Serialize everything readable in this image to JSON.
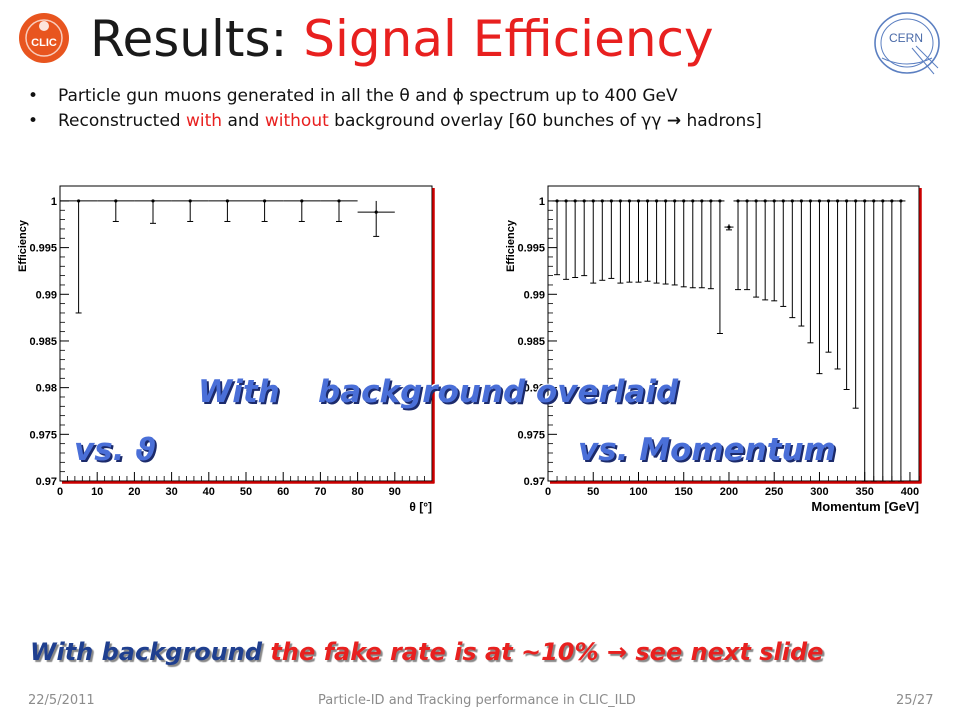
{
  "header": {
    "title_prefix": "Results: ",
    "title_accent": "Signal Efficiency",
    "left_logo_text": "CLIC",
    "right_logo_text": "CERN"
  },
  "bullets": [
    {
      "text": "Particle gun muons generated in all the θ and ϕ spectrum up to 400 GeV"
    },
    {
      "part1": "Reconstructed ",
      "with": "with",
      "part2": " and ",
      "without": "without",
      "part3": " background overlay [60 bunches of γγ  ",
      "arrow": "→",
      "part4": " hadrons]"
    }
  ],
  "overlay": {
    "with": "With",
    "rest": "background overlaid",
    "left_label": "vs. ϑ",
    "right_label": "vs. Momentum"
  },
  "bottom_note": {
    "blue": "With background",
    "red": "the fake rate is at ~10%",
    "arrow": "→",
    "red2": "see next slide"
  },
  "footer": {
    "date": "22/5/2011",
    "center": "Particle-ID and Tracking performance in CLIC_ILD",
    "page": "25/27"
  },
  "colors": {
    "accent": "#e8201f",
    "overlay_blue": "#4a6fd8",
    "frame_red": "#cc0000"
  },
  "chart_data": [
    {
      "type": "scatter",
      "title": "",
      "xlabel": "θ [°]",
      "ylabel": "Efficiency",
      "xlim": [
        0,
        100
      ],
      "ylim": [
        0.97,
        1.0016
      ],
      "xticks": [
        0,
        10,
        20,
        30,
        40,
        50,
        60,
        70,
        80,
        90
      ],
      "yticks": [
        0.97,
        0.975,
        0.98,
        0.985,
        0.99,
        0.995,
        1
      ],
      "tick_labels_x": [
        "0",
        "10",
        "20",
        "30",
        "40",
        "50",
        "60",
        "70",
        "80",
        "90"
      ],
      "tick_labels_y": [
        "0.97",
        "0.975",
        "0.98",
        "0.985",
        "0.99",
        "0.995",
        "1"
      ],
      "points": [
        {
          "x": 5,
          "y": 1.0,
          "xerr": 5,
          "ylow": 0.988,
          "yhigh": 1.0
        },
        {
          "x": 15,
          "y": 1.0,
          "xerr": 5,
          "ylow": 0.9978,
          "yhigh": 1.0
        },
        {
          "x": 25,
          "y": 1.0,
          "xerr": 5,
          "ylow": 0.9976,
          "yhigh": 1.0
        },
        {
          "x": 35,
          "y": 1.0,
          "xerr": 5,
          "ylow": 0.9978,
          "yhigh": 1.0
        },
        {
          "x": 45,
          "y": 1.0,
          "xerr": 5,
          "ylow": 0.9978,
          "yhigh": 1.0
        },
        {
          "x": 55,
          "y": 1.0,
          "xerr": 5,
          "ylow": 0.9978,
          "yhigh": 1.0
        },
        {
          "x": 65,
          "y": 1.0,
          "xerr": 5,
          "ylow": 0.9978,
          "yhigh": 1.0
        },
        {
          "x": 75,
          "y": 1.0,
          "xerr": 5,
          "ylow": 0.9978,
          "yhigh": 1.0
        },
        {
          "x": 85,
          "y": 0.9988,
          "xerr": 5,
          "ylow": 0.9962,
          "yhigh": 1.0
        }
      ]
    },
    {
      "type": "scatter",
      "title": "",
      "xlabel": "Momentum [GeV]",
      "ylabel": "Efficiency",
      "xlim": [
        0,
        410
      ],
      "ylim": [
        0.97,
        1.0016
      ],
      "xticks": [
        0,
        50,
        100,
        150,
        200,
        250,
        300,
        350,
        400
      ],
      "yticks": [
        0.97,
        0.975,
        0.98,
        0.985,
        0.99,
        0.995,
        1
      ],
      "tick_labels_x": [
        "0",
        "50",
        "100",
        "150",
        "200",
        "250",
        "300",
        "350",
        "400"
      ],
      "tick_labels_y": [
        "0.97",
        "0.975",
        "0.98",
        "0.985",
        "0.99",
        "0.995",
        "1"
      ],
      "points": [
        {
          "x": 10,
          "y": 1.0,
          "ylow": 0.9921
        },
        {
          "x": 20,
          "y": 1.0,
          "ylow": 0.9916
        },
        {
          "x": 30,
          "y": 1.0,
          "ylow": 0.9918
        },
        {
          "x": 40,
          "y": 1.0,
          "ylow": 0.992
        },
        {
          "x": 50,
          "y": 1.0,
          "ylow": 0.9912
        },
        {
          "x": 60,
          "y": 1.0,
          "ylow": 0.9915
        },
        {
          "x": 70,
          "y": 1.0,
          "ylow": 0.9917
        },
        {
          "x": 80,
          "y": 1.0,
          "ylow": 0.9912
        },
        {
          "x": 90,
          "y": 1.0,
          "ylow": 0.9913
        },
        {
          "x": 100,
          "y": 1.0,
          "ylow": 0.9913
        },
        {
          "x": 110,
          "y": 1.0,
          "ylow": 0.9914
        },
        {
          "x": 120,
          "y": 1.0,
          "ylow": 0.9912
        },
        {
          "x": 130,
          "y": 1.0,
          "ylow": 0.9911
        },
        {
          "x": 140,
          "y": 1.0,
          "ylow": 0.991
        },
        {
          "x": 150,
          "y": 1.0,
          "ylow": 0.9908
        },
        {
          "x": 160,
          "y": 1.0,
          "ylow": 0.9907
        },
        {
          "x": 170,
          "y": 1.0,
          "ylow": 0.9907
        },
        {
          "x": 180,
          "y": 1.0,
          "ylow": 0.9906
        },
        {
          "x": 190,
          "y": 1.0,
          "ylow": 0.9858
        },
        {
          "x": 200,
          "y": 0.9972,
          "ylow": 0.9969,
          "yhigh": 0.9975
        },
        {
          "x": 210,
          "y": 1.0,
          "ylow": 0.9905
        },
        {
          "x": 220,
          "y": 1.0,
          "ylow": 0.9905
        },
        {
          "x": 230,
          "y": 1.0,
          "ylow": 0.9897
        },
        {
          "x": 240,
          "y": 1.0,
          "ylow": 0.9894
        },
        {
          "x": 250,
          "y": 1.0,
          "ylow": 0.9893
        },
        {
          "x": 260,
          "y": 1.0,
          "ylow": 0.9887
        },
        {
          "x": 270,
          "y": 1.0,
          "ylow": 0.9875
        },
        {
          "x": 280,
          "y": 1.0,
          "ylow": 0.9866
        },
        {
          "x": 290,
          "y": 1.0,
          "ylow": 0.9848
        },
        {
          "x": 300,
          "y": 1.0,
          "ylow": 0.9815
        },
        {
          "x": 310,
          "y": 1.0,
          "ylow": 0.9838
        },
        {
          "x": 320,
          "y": 1.0,
          "ylow": 0.982
        },
        {
          "x": 330,
          "y": 1.0,
          "ylow": 0.9798
        },
        {
          "x": 340,
          "y": 1.0,
          "ylow": 0.9778
        },
        {
          "x": 350,
          "y": 1.0,
          "ylow": 0.97
        },
        {
          "x": 360,
          "y": 1.0,
          "ylow": 0.97
        },
        {
          "x": 370,
          "y": 1.0,
          "ylow": 0.97
        },
        {
          "x": 380,
          "y": 1.0,
          "ylow": 0.97
        },
        {
          "x": 390,
          "y": 1.0,
          "ylow": 0.97
        }
      ]
    }
  ]
}
